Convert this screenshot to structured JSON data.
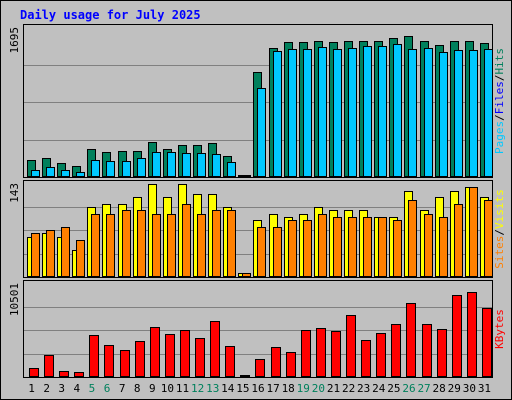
{
  "title": "Daily usage for July 2025",
  "colors": {
    "hits": "#00805c",
    "files": "#0000ff",
    "pages": "#00c8ff",
    "visits": "#ffff00",
    "sites": "#ff8000",
    "kbytes": "#ff0000",
    "weekend": "#00805c",
    "weekday": "#000000"
  },
  "chart_data": [
    {
      "type": "bar",
      "name": "hits-files-pages",
      "ymax_label": "1695",
      "ymax": 1695,
      "side_label": [
        "Pages",
        "Files",
        "Hits"
      ],
      "series": [
        {
          "name": "Hits",
          "values": [
            180,
            200,
            150,
            110,
            310,
            270,
            280,
            280,
            380,
            310,
            350,
            350,
            370,
            230,
            10,
            1170,
            1450,
            1510,
            1510,
            1520,
            1510,
            1520,
            1520,
            1520,
            1560,
            1580,
            1530,
            1480,
            1530,
            1530,
            1500
          ]
        },
        {
          "name": "Files",
          "values": [
            70,
            80,
            70,
            50,
            140,
            120,
            130,
            130,
            160,
            130,
            150,
            150,
            150,
            110,
            5,
            130,
            160,
            160,
            160,
            160,
            160,
            160,
            160,
            160,
            170,
            180,
            170,
            160,
            170,
            170,
            160
          ]
        },
        {
          "name": "Pages",
          "values": [
            70,
            100,
            70,
            50,
            180,
            170,
            170,
            200,
            270,
            270,
            260,
            260,
            250,
            160,
            5,
            990,
            1410,
            1430,
            1430,
            1460,
            1430,
            1450,
            1470,
            1470,
            1490,
            1430,
            1450,
            1400,
            1420,
            1420,
            1430
          ]
        }
      ]
    },
    {
      "type": "bar",
      "name": "visits-sites",
      "ymax_label": "143",
      "ymax": 143,
      "side_label": [
        "Sites",
        "Visits"
      ],
      "series": [
        {
          "name": "Visits",
          "values": [
            60,
            65,
            60,
            40,
            105,
            110,
            110,
            120,
            140,
            120,
            140,
            125,
            125,
            105,
            4,
            85,
            95,
            90,
            95,
            105,
            100,
            100,
            100,
            90,
            90,
            130,
            100,
            120,
            130,
            135,
            120
          ]
        },
        {
          "name": "Sites",
          "values": [
            65,
            70,
            75,
            55,
            95,
            95,
            100,
            100,
            95,
            95,
            110,
            95,
            100,
            100,
            4,
            75,
            75,
            85,
            85,
            95,
            90,
            90,
            90,
            90,
            85,
            115,
            95,
            90,
            110,
            135,
            115
          ]
        }
      ]
    },
    {
      "type": "bar",
      "name": "kbytes",
      "ymax_label": "10501",
      "ymax": 10501,
      "side_label": [
        "KBytes"
      ],
      "series": [
        {
          "name": "KBytes",
          "values": [
            900,
            2400,
            600,
            500,
            4600,
            3500,
            2900,
            3900,
            5500,
            4700,
            5100,
            4200,
            6100,
            3400,
            100,
            1900,
            3200,
            2700,
            5100,
            5400,
            5000,
            6800,
            4000,
            4800,
            5800,
            8100,
            5800,
            5200,
            9000,
            9400,
            7600
          ]
        }
      ]
    }
  ],
  "x_labels": [
    "1",
    "2",
    "3",
    "4",
    "5",
    "6",
    "7",
    "8",
    "9",
    "10",
    "11",
    "12",
    "13",
    "14",
    "15",
    "16",
    "17",
    "18",
    "19",
    "20",
    "21",
    "22",
    "23",
    "24",
    "25",
    "26",
    "27",
    "28",
    "29",
    "30",
    "31"
  ],
  "weekend_days": [
    5,
    6,
    12,
    13,
    19,
    20,
    26,
    27
  ]
}
